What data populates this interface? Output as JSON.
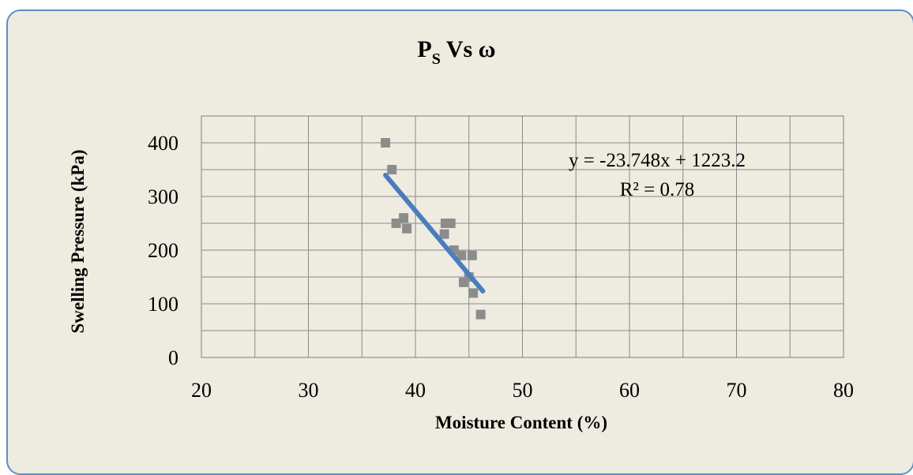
{
  "chart_data": {
    "type": "scatter",
    "title": {
      "main": "P",
      "subscript": "S",
      "rest": " Vs ω"
    },
    "xlabel": "Moisture Content (%)",
    "ylabel": "Swelling Pressure (kPa)",
    "xlim": [
      20,
      80
    ],
    "ylim": [
      0,
      450
    ],
    "x_major_ticks": [
      20,
      30,
      40,
      50,
      60,
      70,
      80
    ],
    "y_major_ticks": [
      0,
      100,
      200,
      300,
      400
    ],
    "x_minor_step": 5,
    "y_minor_step": 50,
    "grid": true,
    "series": [
      {
        "type": "scatter",
        "marker": "square",
        "color": "#8c8c8c",
        "points": [
          [
            37.2,
            400
          ],
          [
            37.8,
            350
          ],
          [
            38.2,
            250
          ],
          [
            38.9,
            260
          ],
          [
            39.2,
            240
          ],
          [
            42.7,
            230
          ],
          [
            42.8,
            250
          ],
          [
            43.3,
            250
          ],
          [
            43.6,
            200
          ],
          [
            44.3,
            190
          ],
          [
            44.5,
            140
          ],
          [
            45.3,
            190
          ],
          [
            45.0,
            150
          ],
          [
            45.4,
            120
          ],
          [
            46.1,
            80
          ]
        ]
      }
    ],
    "trendline": {
      "slope": -23.748,
      "intercept": 1223.2,
      "x_range": [
        37.2,
        46.3
      ],
      "color": "#4a7dbd"
    },
    "annotation": {
      "equation": "y = -23.748x  + 1223.2",
      "r_squared": "R² = 0.78"
    }
  }
}
